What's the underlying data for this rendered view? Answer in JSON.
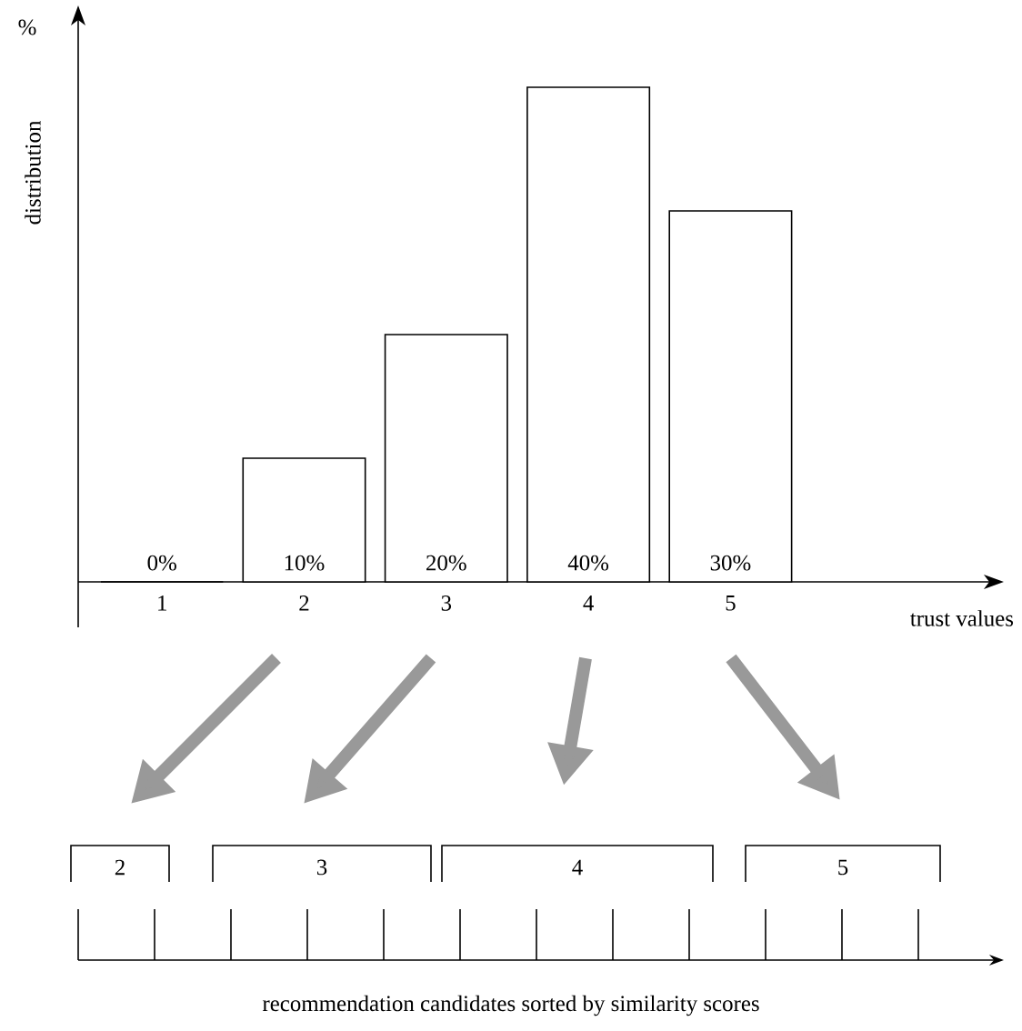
{
  "chart_data": {
    "type": "bar",
    "xlabel": "trust values",
    "ylabel": "distribution",
    "categories": [
      "1",
      "2",
      "3",
      "4",
      "5"
    ],
    "values": [
      0,
      10,
      20,
      40,
      30
    ],
    "value_labels": [
      "0%",
      "10%",
      "20%",
      "40%",
      "30%"
    ],
    "color": "#ffffff",
    "annotations": [
      "%",
      "2",
      "3",
      "4",
      "5",
      "recommendation candidates sorted by similarity scores"
    ]
  }
}
